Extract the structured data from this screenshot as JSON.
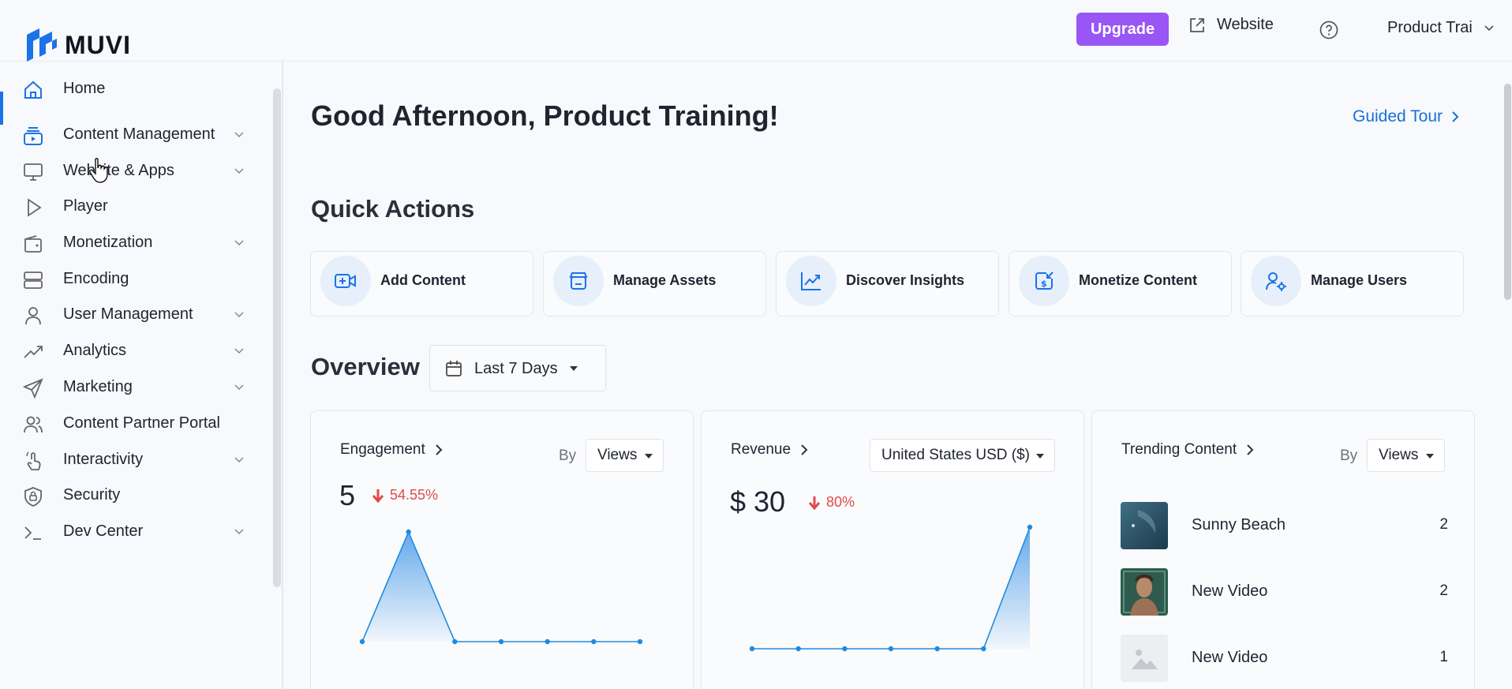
{
  "brand": {
    "name": "MUVI",
    "accent": "#1a73e8",
    "upgrade_color": "#9a55f5"
  },
  "topbar": {
    "upgrade_label": "Upgrade",
    "website_label": "Website",
    "profile_label": "Product Trai"
  },
  "sidebar": {
    "items": [
      {
        "label": "Home",
        "icon": "home-icon",
        "active": true,
        "has_children": false
      },
      {
        "label": "Content Management",
        "icon": "content-stack-icon",
        "has_children": true
      },
      {
        "label": "Website & Apps",
        "icon": "monitor-icon",
        "has_children": true
      },
      {
        "label": "Player",
        "icon": "play-icon",
        "has_children": false
      },
      {
        "label": "Monetization",
        "icon": "wallet-icon",
        "has_children": true
      },
      {
        "label": "Encoding",
        "icon": "server-icon",
        "has_children": false
      },
      {
        "label": "User Management",
        "icon": "user-icon",
        "has_children": true
      },
      {
        "label": "Analytics",
        "icon": "trend-up-icon",
        "has_children": true
      },
      {
        "label": "Marketing",
        "icon": "send-icon",
        "has_children": true
      },
      {
        "label": "Content Partner Portal",
        "icon": "users-icon",
        "has_children": false
      },
      {
        "label": "Interactivity",
        "icon": "tap-icon",
        "has_children": true
      },
      {
        "label": "Security",
        "icon": "shield-icon",
        "has_children": false
      },
      {
        "label": "Dev Center",
        "icon": "terminal-icon",
        "has_children": true
      }
    ]
  },
  "main": {
    "greeting": "Good Afternoon, Product Training!",
    "guided_tour_label": "Guided Tour",
    "quick_actions_title": "Quick Actions",
    "quick_actions": [
      {
        "label": "Add Content",
        "icon": "add-video-icon"
      },
      {
        "label": "Manage Assets",
        "icon": "assets-icon"
      },
      {
        "label": "Discover Insights",
        "icon": "insights-chart-icon"
      },
      {
        "label": "Monetize Content",
        "icon": "monetize-icon"
      },
      {
        "label": "Manage Users",
        "icon": "user-settings-icon"
      }
    ],
    "overview_title": "Overview",
    "date_range": "Last 7 Days"
  },
  "engagement": {
    "title": "Engagement",
    "by_label": "By",
    "metric": "Views",
    "value": "5",
    "delta": "54.55%",
    "delta_direction": "down"
  },
  "revenue": {
    "title": "Revenue",
    "currency": "United States USD ($)",
    "value": "$ 30",
    "delta": "80%",
    "delta_direction": "down"
  },
  "trending": {
    "title": "Trending Content",
    "by_label": "By",
    "metric": "Views",
    "items": [
      {
        "name": "Sunny Beach",
        "value": "2",
        "thumb": "ocean-thumbnail"
      },
      {
        "name": "New Video",
        "value": "2",
        "thumb": "portrait-thumbnail"
      },
      {
        "name": "New Video",
        "value": "1",
        "thumb": "placeholder-image-icon"
      }
    ]
  },
  "chart_data": [
    {
      "type": "area",
      "title": "Engagement",
      "x": [
        1,
        2,
        3,
        4,
        5,
        6,
        7
      ],
      "values": [
        0,
        5,
        0,
        0,
        0,
        0,
        0
      ],
      "ylim": [
        0,
        5
      ],
      "grid": false
    },
    {
      "type": "area",
      "title": "Revenue",
      "x": [
        1,
        2,
        3,
        4,
        5,
        6,
        7
      ],
      "values": [
        0,
        0,
        0,
        0,
        0,
        0,
        30
      ],
      "ylim": [
        0,
        30
      ],
      "grid": false
    }
  ]
}
